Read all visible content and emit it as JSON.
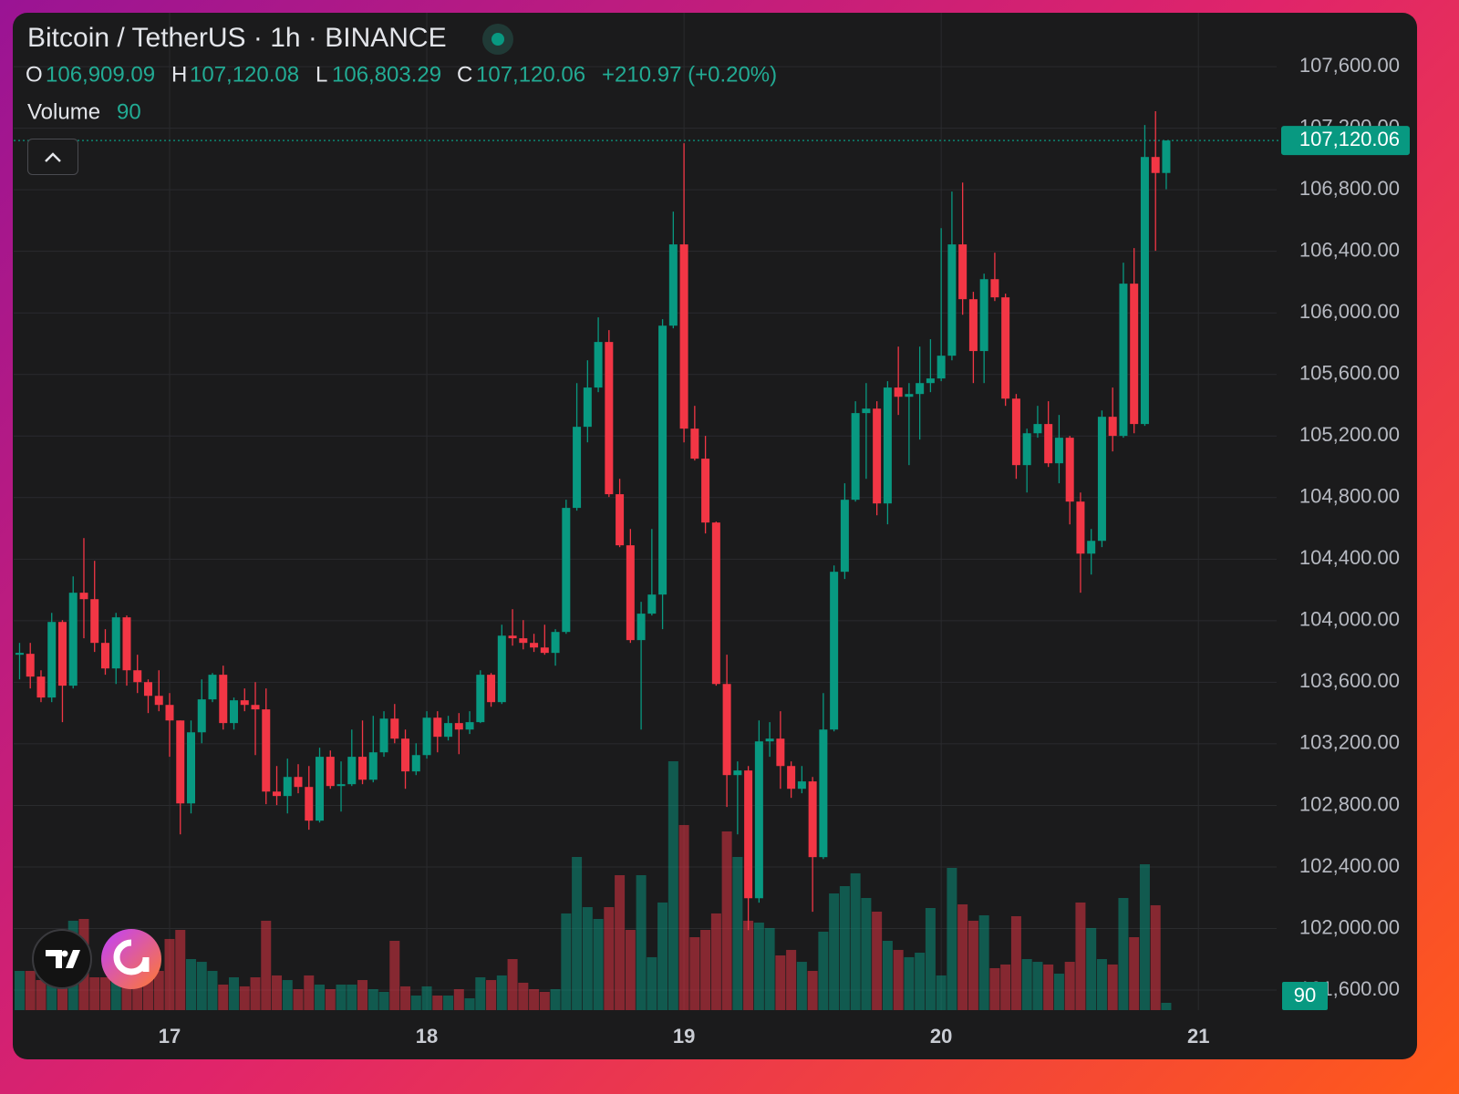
{
  "chart_data": {
    "type": "candlestick",
    "title": "Bitcoin / TetherUS · 1h · BINANCE",
    "ohlc_labels": [
      "O",
      "H",
      "L",
      "C"
    ],
    "ohlc_values": [
      "106,909.09",
      "107,120.08",
      "106,803.29",
      "107,120.06"
    ],
    "change_label": "+210.97 (+0.20%)",
    "volume_label": "Volume",
    "up_color": "#089981",
    "down_color": "#f23645",
    "grid": true,
    "xlim": [
      -0.55,
      117.3
    ],
    "xticks": [
      {
        "value": 14,
        "label": "17"
      },
      {
        "value": 38,
        "label": "18"
      },
      {
        "value": 62,
        "label": "19"
      },
      {
        "value": 86,
        "label": "20"
      },
      {
        "value": 110,
        "label": "21"
      }
    ],
    "ylim": [
      101470,
      107950
    ],
    "yticks": [
      {
        "value": 101600,
        "label": "101,600.00"
      },
      {
        "value": 102000,
        "label": "102,000.00"
      },
      {
        "value": 102400,
        "label": "102,400.00"
      },
      {
        "value": 102800,
        "label": "102,800.00"
      },
      {
        "value": 103200,
        "label": "103,200.00"
      },
      {
        "value": 103600,
        "label": "103,600.00"
      },
      {
        "value": 104000,
        "label": "104,000.00"
      },
      {
        "value": 104400,
        "label": "104,400.00"
      },
      {
        "value": 104800,
        "label": "104,800.00"
      },
      {
        "value": 105200,
        "label": "105,200.00"
      },
      {
        "value": 105600,
        "label": "105,600.00"
      },
      {
        "value": 106000,
        "label": "106,000.00"
      },
      {
        "value": 106400,
        "label": "106,400.00"
      },
      {
        "value": 106800,
        "label": "106,800.00"
      },
      {
        "value": 107200,
        "label": "107,200.00"
      },
      {
        "value": 107600,
        "label": "107,600.00"
      }
    ],
    "volume_ylim": [
      0,
      3465
    ],
    "open": [
      103779,
      103785,
      103637,
      103501,
      103992,
      103578,
      104182,
      104140,
      103856,
      103690,
      104022,
      103678,
      103601,
      103512,
      103453,
      103352,
      102813,
      103275,
      103489,
      103649,
      103335,
      103483,
      103453,
      103424,
      102890,
      102861,
      102985,
      102920,
      102701,
      103116,
      102926,
      102938,
      103116,
      102967,
      103145,
      103364,
      103234,
      103021,
      103127,
      103370,
      103246,
      103335,
      103293,
      103341,
      103649,
      103471,
      103903,
      103886,
      103856,
      103826,
      103791,
      103927,
      104733,
      105260,
      105515,
      105811,
      104822,
      104490,
      103874,
      104046,
      104170,
      105917,
      106445,
      105248,
      105053,
      104638,
      103589,
      102997,
      103027,
      102197,
      103216,
      103234,
      103056,
      102908,
      102956,
      102464,
      103293,
      104318,
      104786,
      105349,
      105378,
      104762,
      105515,
      105455,
      105473,
      105544,
      105574,
      105722,
      106445,
      106089,
      105752,
      106219,
      106101,
      105443,
      105011,
      105218,
      105278,
      105023,
      105189,
      104774,
      104436,
      104519,
      105325,
      105201,
      106190,
      105278,
      107013,
      106909.09
    ],
    "high": [
      103856,
      103856,
      103678,
      104051,
      104004,
      104288,
      104537,
      104389,
      103945,
      104051,
      104034,
      103779,
      103619,
      103678,
      103530,
      103352,
      103352,
      103619,
      103660,
      103708,
      103501,
      103560,
      103601,
      103560,
      103056,
      103104,
      103068,
      103056,
      103175,
      103157,
      103086,
      103293,
      103352,
      103382,
      103412,
      103459,
      103293,
      103204,
      103412,
      103412,
      103382,
      103400,
      103412,
      103678,
      103660,
      103974,
      104075,
      104004,
      103915,
      103974,
      103945,
      104786,
      105544,
      105692,
      105971,
      105888,
      104922,
      104596,
      104123,
      104596,
      105959,
      106658,
      107102,
      105396,
      105201,
      104644,
      103779,
      103086,
      103056,
      103352,
      103341,
      103412,
      103086,
      103056,
      102985,
      103530,
      104359,
      104893,
      105426,
      105544,
      105426,
      105556,
      105781,
      105544,
      105781,
      105829,
      106551,
      106788,
      106847,
      106137,
      106255,
      106391,
      106125,
      105473,
      105248,
      105396,
      105426,
      105337,
      105201,
      104833,
      104596,
      105366,
      105515,
      106326,
      106421,
      107221,
      107310,
      107120.08
    ],
    "low": [
      103619,
      103560,
      103471,
      103471,
      103341,
      103560,
      103886,
      103797,
      103649,
      103589,
      103578,
      103530,
      103400,
      103412,
      103116,
      102612,
      102748,
      103204,
      103471,
      103293,
      103293,
      103412,
      103127,
      102808,
      102802,
      102748,
      102879,
      102642,
      102689,
      102908,
      102760,
      102926,
      102938,
      102950,
      103116,
      103204,
      102908,
      102997,
      103104,
      103145,
      103222,
      103133,
      103264,
      103335,
      103441,
      103459,
      103838,
      103814,
      103797,
      103779,
      103708,
      103915,
      104715,
      105159,
      105485,
      104804,
      104478,
      103856,
      103293,
      104034,
      103945,
      105900,
      105159,
      105041,
      104567,
      103578,
      102790,
      102612,
      101990,
      102168,
      103116,
      102908,
      102849,
      102879,
      102109,
      102452,
      103281,
      104271,
      104774,
      104922,
      104685,
      104626,
      105337,
      105011,
      105177,
      105485,
      105556,
      105692,
      105988,
      105544,
      105544,
      106077,
      105396,
      104922,
      104833,
      105189,
      104999,
      104893,
      104626,
      104182,
      104300,
      104478,
      105100,
      105189,
      105218,
      105266,
      106403,
      106803.29
    ],
    "close": [
      103791,
      103637,
      103501,
      103992,
      103578,
      104182,
      104140,
      103856,
      103690,
      104022,
      103678,
      103601,
      103512,
      103453,
      103352,
      102813,
      103275,
      103489,
      103649,
      103335,
      103483,
      103453,
      103424,
      102890,
      102861,
      102985,
      102920,
      102701,
      103116,
      102926,
      102938,
      103116,
      102967,
      103145,
      103364,
      103234,
      103021,
      103127,
      103370,
      103246,
      103335,
      103293,
      103341,
      103649,
      103471,
      103903,
      103886,
      103856,
      103826,
      103791,
      103927,
      104733,
      105260,
      105515,
      105811,
      104822,
      104490,
      103874,
      104046,
      104170,
      105917,
      106445,
      105248,
      105053,
      104638,
      103589,
      102997,
      103027,
      102197,
      103216,
      103234,
      103056,
      102908,
      102956,
      102464,
      103293,
      104318,
      104786,
      105349,
      105378,
      104762,
      105515,
      105455,
      105473,
      105544,
      105574,
      105722,
      106445,
      106089,
      105752,
      106219,
      106101,
      105443,
      105011,
      105218,
      105278,
      105023,
      105189,
      104774,
      104436,
      104519,
      105325,
      105201,
      106190,
      105278,
      107013,
      106909,
      107120.06
    ],
    "volume": [
      484,
      484,
      371,
      709,
      428,
      1103,
      1125,
      405,
      405,
      709,
      653,
      428,
      405,
      484,
      878,
      990,
      630,
      596,
      484,
      315,
      405,
      293,
      405,
      1103,
      428,
      371,
      259,
      428,
      315,
      259,
      315,
      315,
      371,
      259,
      225,
      855,
      293,
      180,
      293,
      180,
      180,
      259,
      146,
      405,
      371,
      428,
      630,
      338,
      259,
      225,
      259,
      1193,
      1890,
      1271,
      1125,
      1271,
      1665,
      990,
      1665,
      653,
      1328,
      3071,
      2284,
      900,
      990,
      1193,
      2205,
      1890,
      1103,
      1080,
      1013,
      675,
      743,
      596,
      484,
      968,
      1440,
      1530,
      1688,
      1384,
      1215,
      855,
      743,
      653,
      709,
      1260,
      428,
      1755,
      1305,
      1103,
      1170,
      518,
      563,
      1159,
      630,
      596,
      563,
      450,
      596,
      1328,
      1013,
      630,
      563,
      1384,
      900,
      1800,
      1294,
      90
    ]
  }
}
